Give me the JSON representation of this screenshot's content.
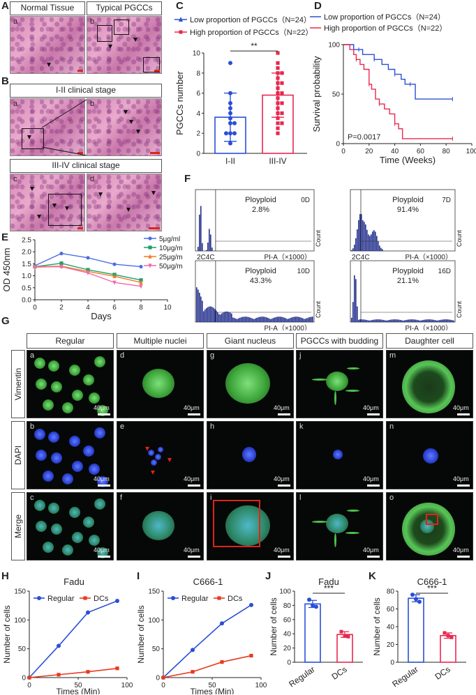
{
  "panels": {
    "A": "A",
    "B": "B",
    "C": "C",
    "D": "D",
    "E": "E",
    "F": "F",
    "G": "G",
    "H": "H",
    "I": "I",
    "J": "J",
    "K": "K"
  },
  "panelA": {
    "left_title": "Normal Tissue",
    "right_title": "Typical PGCCs",
    "left_tile": "a",
    "right_tile": "b"
  },
  "panelB": {
    "stage1_title": "I-II clinical stage",
    "stage2_title": "III-IV clinical stage",
    "tiles": [
      "a",
      "b",
      "c",
      "d"
    ]
  },
  "panelC": {
    "legend_low": "Low proportion of PGCCs（N=24）",
    "legend_high": "High proportion of PGCCs（N=22）",
    "significance": "**",
    "colors": {
      "low": "#2a4fd6",
      "high": "#e8284f"
    }
  },
  "panelF": {
    "histograms": [
      {
        "label": "Ployploid",
        "value": "2.8%",
        "day": "0D"
      },
      {
        "label": "Ployploid",
        "value": "91.4%",
        "day": "7D"
      },
      {
        "label": "Ployploid",
        "value": "43.3%",
        "day": "10D"
      },
      {
        "label": "Ployploid",
        "value": "21.1%",
        "day": "16D"
      }
    ],
    "xlabel": "PI-A（×1000）",
    "ylabel": "Count",
    "peak_label": "2C4C"
  },
  "panelG": {
    "columns": [
      "Regular",
      "Multiple nuclei",
      "Giant nucleus",
      "PGCCs with budding",
      "Daughter cell"
    ],
    "rows": [
      "Vimentin",
      "DAPI",
      "Merge"
    ],
    "tile_letters": [
      "a",
      "d",
      "g",
      "j",
      "m",
      "b",
      "e",
      "h",
      "k",
      "n",
      "c",
      "f",
      "i",
      "l",
      "o"
    ],
    "scale_label": "40μm"
  },
  "chart_data": [
    {
      "id": "C",
      "type": "bar",
      "categories": [
        "I-II",
        "III-IV"
      ],
      "values": [
        3.6,
        5.8
      ],
      "errors": [
        2.4,
        2.2
      ],
      "points": [
        [
          9.0,
          6.0,
          5.0,
          4.5,
          4.0,
          3.5,
          3.0,
          3.0,
          2.0,
          2.0,
          2.0,
          1.0
        ],
        [
          10.0,
          9.0,
          8.5,
          8.0,
          8.0,
          7.5,
          7.0,
          7.0,
          6.5,
          6.0,
          6.0,
          5.5,
          5.0,
          5.0,
          4.5,
          4.0,
          4.0,
          3.5,
          3.0,
          3.0,
          2.5,
          2.0
        ]
      ],
      "ylabel": "PGCCs number",
      "ylim": [
        0,
        10
      ],
      "yticks": [
        "0",
        "2",
        "4",
        "6",
        "8",
        "10"
      ]
    },
    {
      "id": "D",
      "type": "line",
      "series": [
        {
          "name": "Low proportion of PGCCs（N=24）",
          "x": [
            0,
            5,
            8,
            12,
            15,
            20,
            24,
            30,
            35,
            40,
            45,
            48,
            52,
            56,
            60,
            85
          ],
          "y": [
            100,
            100,
            95,
            95,
            90,
            90,
            85,
            80,
            75,
            70,
            65,
            60,
            60,
            45,
            45,
            45
          ]
        },
        {
          "name": "High proportion of PGCCs（N=22）",
          "x": [
            0,
            5,
            8,
            10,
            13,
            16,
            20,
            22,
            25,
            28,
            32,
            36,
            40,
            43,
            46,
            85
          ],
          "y": [
            100,
            95,
            90,
            85,
            80,
            75,
            60,
            55,
            45,
            40,
            35,
            30,
            20,
            15,
            5,
            5
          ]
        }
      ],
      "annotation": "P=0.0017",
      "xlabel": "Time (Weeks)",
      "ylabel": "Survival probability",
      "xlim": [
        0,
        100
      ],
      "ylim": [
        0,
        100
      ],
      "xticks": [
        "0",
        "20",
        "40",
        "60",
        "80",
        "100"
      ],
      "yticks": [
        "0",
        "50",
        "100"
      ]
    },
    {
      "id": "E",
      "type": "line",
      "x": [
        0,
        2,
        4,
        6,
        8
      ],
      "series": [
        {
          "name": "5μg/ml",
          "values": [
            1.42,
            1.93,
            1.75,
            1.48,
            1.38
          ],
          "color": "#4a6ee8"
        },
        {
          "name": "10μg/ml",
          "values": [
            1.38,
            1.52,
            1.25,
            1.05,
            0.82
          ],
          "color": "#1f9e6a"
        },
        {
          "name": "25μg/ml",
          "values": [
            1.38,
            1.4,
            1.18,
            0.98,
            0.72
          ],
          "color": "#f07b23"
        },
        {
          "name": "50μg/ml",
          "values": [
            1.36,
            1.38,
            1.12,
            0.72,
            0.56
          ],
          "color": "#f06aa8"
        }
      ],
      "xlabel": "Days",
      "ylabel": "OD 450nm",
      "xlim": [
        0,
        10
      ],
      "ylim": [
        0,
        2.5
      ],
      "xticks": [
        "0",
        "2",
        "4",
        "6",
        "8",
        "10"
      ],
      "yticks": [
        "0.0",
        "0.5",
        "1.0",
        "1.5",
        "2.0",
        "2.5"
      ]
    },
    {
      "id": "H",
      "type": "line",
      "title": "Fadu",
      "x": [
        0,
        30,
        60,
        90
      ],
      "series": [
        {
          "name": "Regular",
          "values": [
            0,
            55,
            113,
            133
          ],
          "color": "#2a4fd6"
        },
        {
          "name": "DCs",
          "values": [
            0,
            5,
            10,
            16
          ],
          "color": "#e83a1e"
        }
      ],
      "xlabel": "Times (Min)",
      "ylabel": "Number of cells",
      "xlim": [
        0,
        100
      ],
      "ylim": [
        0,
        150
      ],
      "xticks": [
        "0",
        "50",
        "100"
      ],
      "yticks": [
        "0",
        "50",
        "100",
        "150"
      ]
    },
    {
      "id": "I",
      "type": "line",
      "title": "C666-1",
      "x": [
        0,
        30,
        60,
        90
      ],
      "series": [
        {
          "name": "Regular",
          "values": [
            0,
            48,
            94,
            126
          ],
          "color": "#2a4fd6"
        },
        {
          "name": "DCs",
          "values": [
            0,
            10,
            27,
            38
          ],
          "color": "#e83a1e"
        }
      ],
      "xlabel": "Times (Min)",
      "ylabel": "Number of cells",
      "xlim": [
        0,
        100
      ],
      "ylim": [
        0,
        150
      ],
      "xticks": [
        "0",
        "50",
        "100"
      ],
      "yticks": [
        "0",
        "50",
        "100",
        "150"
      ]
    },
    {
      "id": "J",
      "type": "bar",
      "title": "Fadu",
      "categories": [
        "Regular",
        "DCs"
      ],
      "values": [
        82,
        39
      ],
      "errors": [
        5,
        4
      ],
      "points": [
        [
          88,
          80,
          78
        ],
        [
          43,
          37,
          36
        ]
      ],
      "colors": [
        "#2a4fd6",
        "#e8284f"
      ],
      "significance": "***",
      "ylabel": "Number of cells",
      "ylim": [
        0,
        100
      ],
      "yticks": [
        "0",
        "20",
        "40",
        "60",
        "80",
        "100"
      ]
    },
    {
      "id": "K",
      "type": "bar",
      "title": "C666-1",
      "categories": [
        "Regular",
        "DCs"
      ],
      "values": [
        72,
        30
      ],
      "errors": [
        4,
        3
      ],
      "points": [
        [
          76,
          71,
          68
        ],
        [
          33,
          30,
          28
        ]
      ],
      "colors": [
        "#2a4fd6",
        "#e8284f"
      ],
      "significance": "***",
      "ylabel": "Number of cells",
      "ylim": [
        0,
        80
      ],
      "yticks": [
        "0",
        "20",
        "40",
        "60",
        "80"
      ]
    }
  ]
}
